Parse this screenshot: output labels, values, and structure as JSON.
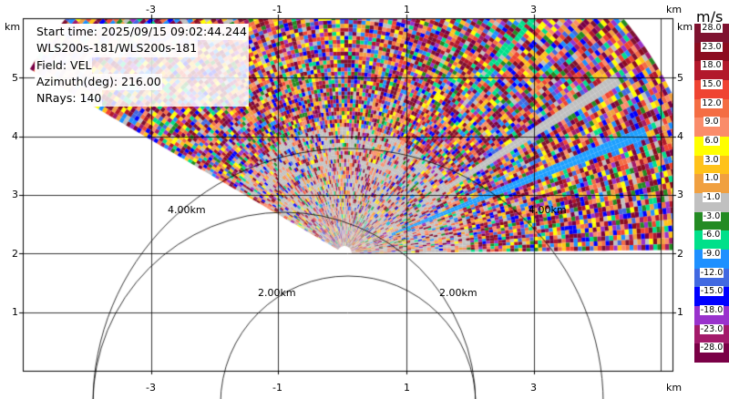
{
  "info": {
    "start_time": "Start time: 2025/09/15 09:02:44.244",
    "instrument": "WLS200s-181/WLS200s-181",
    "field": "Field: VEL",
    "azimuth": "Azimuth(deg): 216.00",
    "nrays": "NRays: 140"
  },
  "axes": {
    "x_ticks": [
      "-3",
      "-1",
      "1",
      "3"
    ],
    "y_ticks": [
      "1",
      "2",
      "3",
      "4",
      "5"
    ],
    "unit": "km"
  },
  "range_rings": [
    "4.00km",
    "2.00km",
    "2.00km",
    "4.00km"
  ],
  "colorbar": {
    "unit": "m/s",
    "labels": [
      "28.0",
      "23.0",
      "18.0",
      "15.0",
      "12.0",
      "9.0",
      "6.0",
      "3.0",
      "1.0",
      "-1.0",
      "-3.0",
      "-6.0",
      "-9.0",
      "-12.0",
      "-15.0",
      "-18.0",
      "-23.0",
      "-28.0"
    ],
    "colors": [
      "#7f1230",
      "#8c0c20",
      "#b2182b",
      "#ef4432",
      "#f46d43",
      "#fa8c6a",
      "#ffff00",
      "#ffc21a",
      "#f0a040",
      "#c0c0c0",
      "#238b23",
      "#00e08a",
      "#1e90ff",
      "#4169e1",
      "#0000ff",
      "#9932cc",
      "#a31a6a",
      "#7a0046"
    ]
  }
}
